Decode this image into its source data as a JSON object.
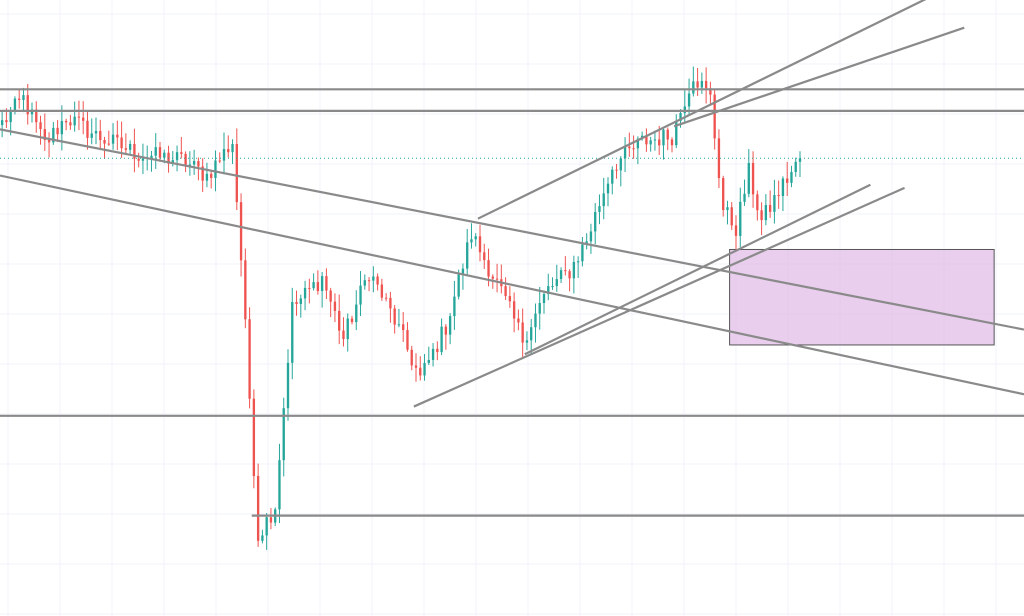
{
  "chart_data": {
    "type": "candlestick",
    "title": "",
    "xlabel": "",
    "ylabel": "",
    "grid": true,
    "x_range": [
      0,
      240
    ],
    "ylim": [
      0,
      100
    ],
    "colors": {
      "up": "#26a69a",
      "down": "#ef5350",
      "trendline": "#8a8a8a",
      "last_price": "#26a69a",
      "zone_fill": "#e1bee7",
      "zone_border": "#555555",
      "grid": "#f0f3fa"
    },
    "anchors": [
      [
        0,
        80.0
      ],
      [
        5,
        84.0
      ],
      [
        10,
        76.5
      ],
      [
        15,
        81.0
      ],
      [
        22,
        78.0
      ],
      [
        32,
        75.0
      ],
      [
        42,
        74.0
      ],
      [
        48,
        71.5
      ],
      [
        54,
        77.0
      ],
      [
        56,
        58.0
      ],
      [
        60,
        13.0
      ],
      [
        64,
        18.0
      ],
      [
        68,
        50.0
      ],
      [
        75,
        55.0
      ],
      [
        80,
        45.0
      ],
      [
        86,
        56.0
      ],
      [
        92,
        48.0
      ],
      [
        98,
        38.5
      ],
      [
        104,
        47.0
      ],
      [
        110,
        62.0
      ],
      [
        116,
        54.0
      ],
      [
        122,
        45.0
      ],
      [
        128,
        53.0
      ],
      [
        133,
        56.0
      ],
      [
        137,
        61.0
      ],
      [
        143,
        73.0
      ],
      [
        150,
        77.0
      ],
      [
        157,
        78.0
      ],
      [
        162,
        88.0
      ],
      [
        166,
        84.0
      ],
      [
        169,
        66.0
      ],
      [
        172,
        63.0
      ],
      [
        175,
        72.0
      ],
      [
        178,
        64.0
      ],
      [
        183,
        70.0
      ],
      [
        187,
        74.0
      ]
    ],
    "last_price": 74.3,
    "horizontal_levels": [
      {
        "y": 85.5,
        "from": 0,
        "to": 240
      },
      {
        "y": 82.0,
        "from": 0,
        "to": 240
      },
      {
        "y": 32.5,
        "from": 0,
        "to": 240
      },
      {
        "y": 16.3,
        "from": 59,
        "to": 240
      }
    ],
    "trendlines": [
      {
        "from": [
          0,
          79.0
        ],
        "to": [
          240,
          46.5
        ]
      },
      {
        "from": [
          0,
          71.5
        ],
        "to": [
          240,
          36.0
        ]
      },
      {
        "from": [
          97,
          34.0
        ],
        "to": [
          212,
          69.5
        ]
      },
      {
        "from": [
          123,
          42.5
        ],
        "to": [
          204,
          70.0
        ]
      },
      {
        "from": [
          112,
          64.5
        ],
        "to": [
          218,
          100.5
        ]
      },
      {
        "from": [
          158,
          79.5
        ],
        "to": [
          226,
          95.5
        ]
      }
    ],
    "zones": [
      {
        "x": [
          171,
          233
        ],
        "y": [
          44.0,
          59.5
        ]
      }
    ]
  }
}
